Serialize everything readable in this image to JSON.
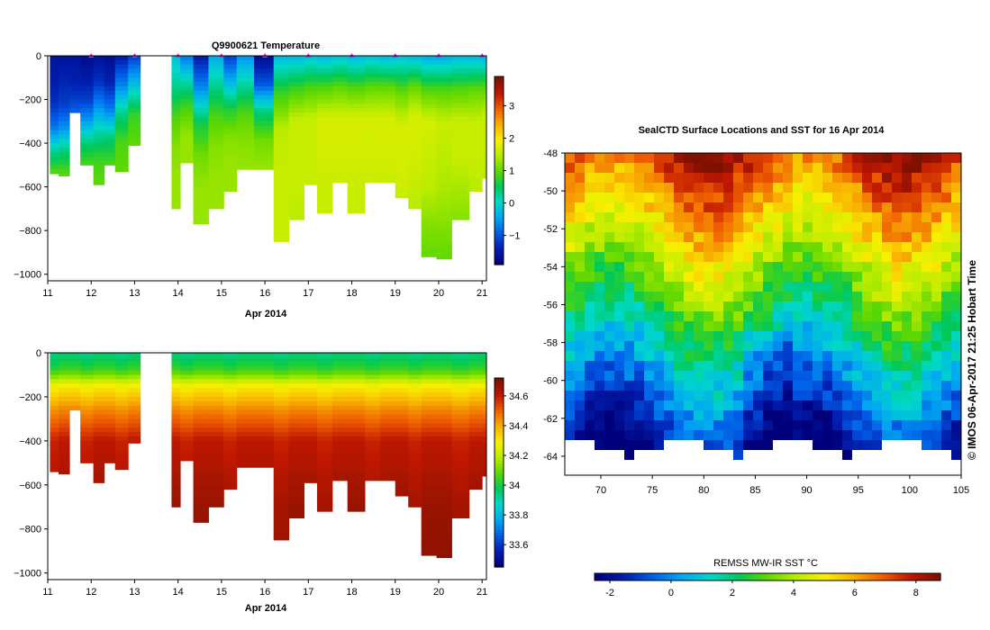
{
  "chart_data": [
    {
      "type": "heatmap",
      "title": "Q9900621  Temperature",
      "xlabel": "Apr 2014",
      "ylabel": "",
      "x_ticks": [
        "11",
        "12",
        "13",
        "14",
        "15",
        "16",
        "17",
        "18",
        "19",
        "20",
        "21"
      ],
      "y_ticks": [
        "0",
        "−200",
        "−400",
        "−600",
        "−800",
        "−1000"
      ],
      "xlim": [
        11,
        21.1
      ],
      "ylim": [
        -1030,
        0
      ],
      "colorbar": {
        "ticks": [
          "−1",
          "0",
          "1",
          "2",
          "3"
        ],
        "range": [
          -1.9,
          3.9
        ]
      },
      "profiles": [
        {
          "day": 11.05,
          "max_depth": 540,
          "temps": [
            -1.6,
            -1.5,
            -1.3,
            -0.8,
            0.2,
            1.0
          ]
        },
        {
          "day": 11.25,
          "max_depth": 550,
          "temps": [
            -1.6,
            -1.4,
            -1.2,
            -0.6,
            0.4,
            1.0
          ]
        },
        {
          "day": 11.5,
          "max_depth": 260,
          "temps": [
            -1.6,
            -1.5,
            -1.4,
            -1.2,
            -0.9
          ]
        },
        {
          "day": 11.75,
          "max_depth": 500,
          "temps": [
            -1.7,
            -1.5,
            -1.2,
            -0.5,
            0.4,
            0.9
          ]
        },
        {
          "day": 12.05,
          "max_depth": 590,
          "temps": [
            -1.6,
            -1.3,
            -0.6,
            0.2,
            0.8,
            1.0
          ]
        },
        {
          "day": 12.3,
          "max_depth": 500,
          "temps": [
            -1.7,
            -1.4,
            -0.7,
            0.4,
            0.9
          ]
        },
        {
          "day": 12.55,
          "max_depth": 530,
          "temps": [
            -1.5,
            -0.7,
            0.3,
            0.9,
            1.0
          ]
        },
        {
          "day": 12.85,
          "max_depth": 410,
          "temps": [
            -1.2,
            -0.2,
            0.8,
            1.0
          ]
        },
        {
          "day": 13.85,
          "max_depth": 700,
          "temps": [
            -0.2,
            0.3,
            0.9,
            1.2,
            1.3,
            1.3
          ]
        },
        {
          "day": 14.05,
          "max_depth": 490,
          "temps": [
            -0.8,
            0.2,
            0.9,
            1.3,
            1.3
          ]
        },
        {
          "day": 14.35,
          "max_depth": 770,
          "temps": [
            -1.5,
            -0.6,
            0.6,
            1.1,
            1.3,
            1.3
          ]
        },
        {
          "day": 14.7,
          "max_depth": 700,
          "temps": [
            -0.4,
            0.3,
            0.9,
            1.2,
            1.3,
            1.3
          ]
        },
        {
          "day": 15.05,
          "max_depth": 620,
          "temps": [
            -1.2,
            -0.3,
            0.7,
            1.2,
            1.3,
            1.3
          ]
        },
        {
          "day": 15.35,
          "max_depth": 520,
          "temps": [
            -0.6,
            0.2,
            0.9,
            1.2,
            1.3
          ]
        },
        {
          "day": 15.75,
          "max_depth": 520,
          "temps": [
            -1.7,
            -1.0,
            0.4,
            1.1,
            1.3
          ]
        },
        {
          "day": 16.2,
          "max_depth": 850,
          "temps": [
            -0.3,
            0.8,
            1.5,
            1.6,
            1.6,
            1.6
          ]
        },
        {
          "day": 16.55,
          "max_depth": 750,
          "temps": [
            -0.3,
            0.8,
            1.6,
            1.6,
            1.6,
            1.5
          ]
        },
        {
          "day": 16.9,
          "max_depth": 590,
          "temps": [
            -0.2,
            0.9,
            1.6,
            1.6,
            1.6
          ]
        },
        {
          "day": 17.2,
          "max_depth": 720,
          "temps": [
            -0.3,
            0.9,
            1.7,
            1.7,
            1.6,
            1.6
          ]
        },
        {
          "day": 17.55,
          "max_depth": 580,
          "temps": [
            -0.2,
            1.0,
            1.7,
            1.7,
            1.6
          ]
        },
        {
          "day": 17.9,
          "max_depth": 720,
          "temps": [
            -0.3,
            0.9,
            1.7,
            1.7,
            1.6,
            1.6
          ]
        },
        {
          "day": 18.3,
          "max_depth": 580,
          "temps": [
            -0.2,
            1.0,
            1.7,
            1.7,
            1.6
          ]
        },
        {
          "day": 18.65,
          "max_depth": 580,
          "temps": [
            -0.3,
            1.0,
            1.7,
            1.7,
            1.6
          ]
        },
        {
          "day": 19.0,
          "max_depth": 650,
          "temps": [
            -0.2,
            1.0,
            1.7,
            1.7,
            1.6
          ]
        },
        {
          "day": 19.3,
          "max_depth": 700,
          "temps": [
            -0.3,
            1.0,
            1.7,
            1.7,
            1.6,
            1.5
          ]
        },
        {
          "day": 19.6,
          "max_depth": 920,
          "temps": [
            -0.4,
            0.9,
            1.7,
            1.6,
            1.5,
            1.2,
            1.0
          ]
        },
        {
          "day": 19.95,
          "max_depth": 930,
          "temps": [
            -0.4,
            0.9,
            1.6,
            1.5,
            1.4,
            1.2,
            1.0
          ]
        },
        {
          "day": 20.3,
          "max_depth": 750,
          "temps": [
            -0.3,
            0.9,
            1.6,
            1.6,
            1.4,
            1.2
          ]
        },
        {
          "day": 20.7,
          "max_depth": 620,
          "temps": [
            -0.3,
            1.0,
            1.6,
            1.6,
            1.5
          ]
        },
        {
          "day": 21.0,
          "max_depth": 560,
          "temps": [
            -0.4,
            0.9,
            1.6,
            1.6,
            1.5
          ]
        }
      ],
      "markers_color": "#e020e0"
    },
    {
      "type": "heatmap",
      "title": "",
      "xlabel": "Apr 2014",
      "ylabel": "",
      "x_ticks": [
        "11",
        "12",
        "13",
        "14",
        "15",
        "16",
        "17",
        "18",
        "19",
        "20",
        "21"
      ],
      "y_ticks": [
        "0",
        "−200",
        "−400",
        "−600",
        "−800",
        "−1000"
      ],
      "xlim": [
        11,
        21.1
      ],
      "ylim": [
        -1030,
        0
      ],
      "colorbar": {
        "ticks": [
          "33.6",
          "33.8",
          "34",
          "34.2",
          "34.4",
          "34.6"
        ],
        "range": [
          33.45,
          34.72
        ]
      },
      "profiles_from_top_panel": true,
      "salinity_profile": [
        [
          0,
          33.95
        ],
        [
          80,
          34.05
        ],
        [
          150,
          34.3
        ],
        [
          250,
          34.45
        ],
        [
          400,
          34.62
        ],
        [
          700,
          34.68
        ],
        [
          1000,
          34.7
        ]
      ]
    },
    {
      "type": "heatmap",
      "title": "SealCTD Surface Locations and SST for 16 Apr 2014",
      "xlabel": "",
      "ylabel": "",
      "x_ticks": [
        "70",
        "75",
        "80",
        "85",
        "90",
        "95",
        "100",
        "105"
      ],
      "y_ticks": [
        "-48",
        "-50",
        "-52",
        "-54",
        "-56",
        "-58",
        "-60",
        "-62",
        "-64"
      ],
      "xlim": [
        66.5,
        105
      ],
      "ylim": [
        -65,
        -48
      ],
      "colorbar": {
        "label": "REMSS MW-IR SST °C",
        "ticks": [
          "-2",
          "0",
          "2",
          "4",
          "6",
          "8"
        ],
        "range": [
          -2.5,
          8.8
        ]
      },
      "credit": "© IMOS 06-Apr-2017 21:25 Hobart Time"
    }
  ],
  "palette": [
    "#00007a",
    "#0020b0",
    "#0060e8",
    "#00a8f0",
    "#00d8c8",
    "#00c858",
    "#60d800",
    "#b8ec00",
    "#f8f000",
    "#f8b000",
    "#f06000",
    "#c01800",
    "#801000"
  ]
}
